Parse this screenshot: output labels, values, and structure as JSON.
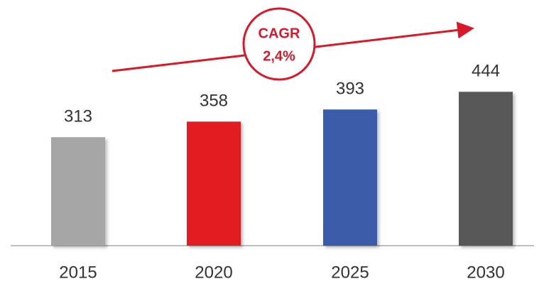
{
  "chart_data": {
    "type": "bar",
    "categories": [
      "2015",
      "2020",
      "2025",
      "2030"
    ],
    "values": [
      313,
      358,
      393,
      444
    ],
    "colors": [
      "#a6a6a6",
      "#e31b23",
      "#3a5ca8",
      "#595959"
    ],
    "ylim": [
      0,
      500
    ],
    "annotation_lines": [
      "CAGR",
      "2,4%"
    ],
    "annotation_color": "#d9192a"
  }
}
